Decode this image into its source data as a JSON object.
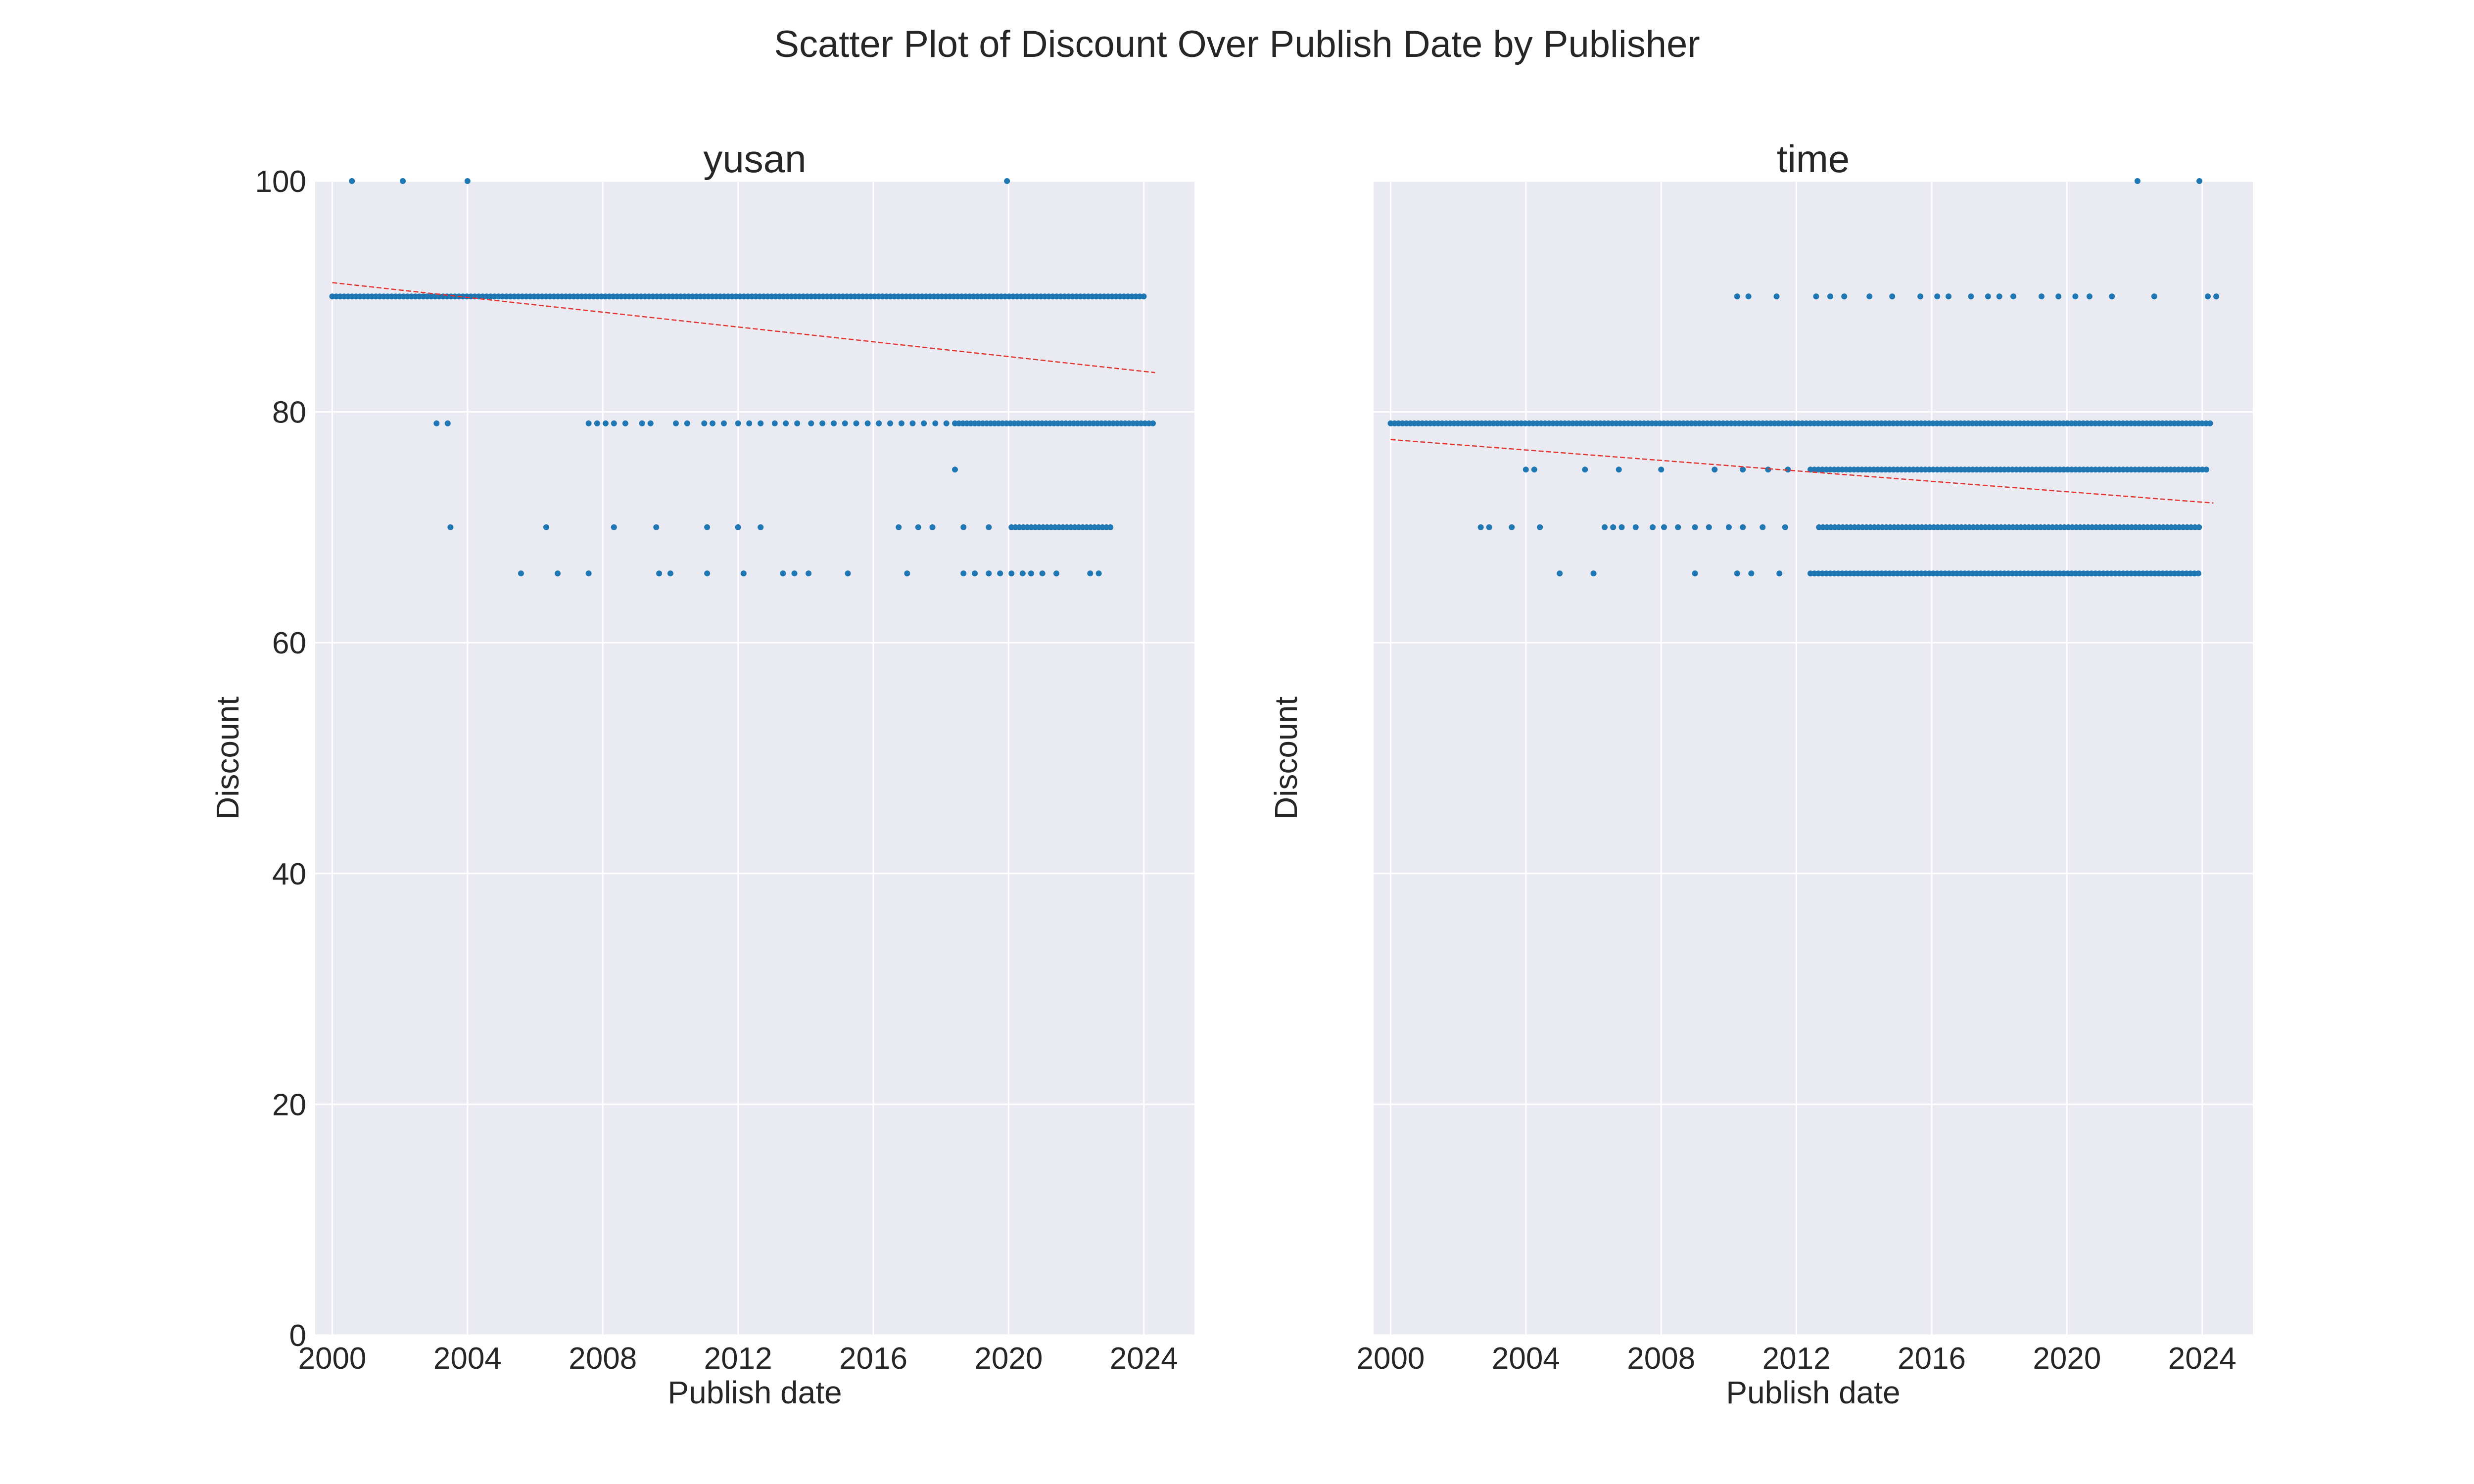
{
  "chart_data": {
    "type": "scatter",
    "title": "Scatter Plot of Discount Over Publish Date by Publisher",
    "shared_y": true,
    "colors": {
      "points": "#1f77b4",
      "trend": "#e3342f",
      "plot_bg": "#eaeaf2",
      "grid": "#ffffff"
    },
    "panels": [
      {
        "title": "yusan",
        "xlabel": "Publish date",
        "ylabel": "Discount",
        "xlim": [
          "1999-07-01",
          "2025-07-01"
        ],
        "ylim": [
          0,
          100
        ],
        "xticks": [
          "2000",
          "2004",
          "2008",
          "2012",
          "2016",
          "2020",
          "2024"
        ],
        "yticks": [
          "0",
          "20",
          "40",
          "60",
          "80",
          "100"
        ],
        "series": [
          {
            "y": 90,
            "dense_range": [
              "2000-01-01",
              "2024-02-01"
            ],
            "dates": []
          },
          {
            "y": 100,
            "dense_range": null,
            "dates": [
              "2000-08-01",
              "2002-02-01",
              "2004-01-01",
              "2019-12-15"
            ]
          },
          {
            "y": 79,
            "dense_range": [
              "2018-06-01",
              "2024-05-01"
            ],
            "dates": [
              "2003-02-01",
              "2003-06-01",
              "2007-08-01",
              "2007-11-01",
              "2008-02-01",
              "2008-05-01",
              "2008-09-01",
              "2009-03-01",
              "2009-06-01",
              "2010-03-01",
              "2010-07-01",
              "2011-01-01",
              "2011-04-01",
              "2011-08-01",
              "2012-01-01",
              "2012-05-01",
              "2012-09-01",
              "2013-02-01",
              "2013-06-01",
              "2013-10-01",
              "2014-03-01",
              "2014-07-01",
              "2014-11-01",
              "2015-03-01",
              "2015-07-01",
              "2015-11-01",
              "2016-03-01",
              "2016-07-01",
              "2016-11-01",
              "2017-03-01",
              "2017-07-01",
              "2017-11-01",
              "2018-03-01"
            ]
          },
          {
            "y": 75,
            "dense_range": null,
            "dates": [
              "2018-06-01"
            ]
          },
          {
            "y": 70,
            "dense_range": [
              "2020-02-01",
              "2023-02-01"
            ],
            "dates": [
              "2003-07-01",
              "2006-05-01",
              "2008-05-01",
              "2009-08-01",
              "2011-02-01",
              "2012-01-01",
              "2012-09-01",
              "2016-10-01",
              "2017-05-01",
              "2017-10-01",
              "2018-09-01",
              "2019-06-01"
            ]
          },
          {
            "y": 66,
            "dense_range": null,
            "dates": [
              "2005-08-01",
              "2006-09-01",
              "2007-08-01",
              "2009-09-01",
              "2010-01-01",
              "2011-02-01",
              "2012-03-01",
              "2013-05-01",
              "2013-09-01",
              "2014-02-01",
              "2015-04-01",
              "2017-01-01",
              "2018-09-01",
              "2019-01-01",
              "2019-06-01",
              "2019-10-01",
              "2020-02-01",
              "2020-06-01",
              "2020-09-01",
              "2021-01-01",
              "2021-06-01",
              "2022-06-01",
              "2022-09-01"
            ]
          }
        ],
        "trend": {
          "start": [
            "2000-01-01",
            91.2
          ],
          "end": [
            "2024-05-01",
            83.4
          ]
        }
      },
      {
        "title": "time",
        "xlabel": "Publish date",
        "ylabel": "Discount",
        "xlim": [
          "1999-07-01",
          "2025-07-01"
        ],
        "ylim": [
          0,
          100
        ],
        "xticks": [
          "2000",
          "2004",
          "2008",
          "2012",
          "2016",
          "2020",
          "2024"
        ],
        "yticks": [
          "0",
          "20",
          "40",
          "60",
          "80",
          "100"
        ],
        "series": [
          {
            "y": 79,
            "dense_range": [
              "2000-01-01",
              "2024-05-01"
            ],
            "dates": []
          },
          {
            "y": 100,
            "dense_range": null,
            "dates": [
              "2022-02-01",
              "2023-12-01"
            ]
          },
          {
            "y": 90,
            "dense_range": null,
            "dates": [
              "2010-04-01",
              "2010-08-01",
              "2011-06-01",
              "2012-08-01",
              "2013-01-01",
              "2013-06-01",
              "2014-03-01",
              "2014-11-01",
              "2015-09-01",
              "2016-03-01",
              "2016-07-01",
              "2017-03-01",
              "2017-09-01",
              "2018-01-01",
              "2018-06-01",
              "2019-04-01",
              "2019-10-01",
              "2020-04-01",
              "2020-09-01",
              "2021-05-01",
              "2022-08-01",
              "2024-03-01",
              "2024-06-01"
            ]
          },
          {
            "y": 75,
            "dense_range": [
              "2012-06-01",
              "2024-03-01"
            ],
            "dates": [
              "2004-01-01",
              "2004-04-01",
              "2005-10-01",
              "2006-10-01",
              "2008-01-01",
              "2009-08-01",
              "2010-06-01",
              "2011-03-01",
              "2011-10-01"
            ]
          },
          {
            "y": 70,
            "dense_range": [
              "2012-09-01",
              "2024-01-01"
            ],
            "dates": [
              "2002-09-01",
              "2002-12-01",
              "2003-08-01",
              "2004-06-01",
              "2006-05-01",
              "2006-08-01",
              "2006-11-01",
              "2007-04-01",
              "2007-10-01",
              "2008-02-01",
              "2008-07-01",
              "2009-01-01",
              "2009-06-01",
              "2010-01-01",
              "2010-06-01",
              "2011-01-01",
              "2011-09-01"
            ]
          },
          {
            "y": 66,
            "dense_range": [
              "2012-06-01",
              "2024-01-01"
            ],
            "dates": [
              "2005-01-01",
              "2006-01-01",
              "2009-01-01",
              "2010-04-01",
              "2010-09-01",
              "2011-07-01"
            ]
          }
        ],
        "trend": {
          "start": [
            "2000-01-01",
            77.6
          ],
          "end": [
            "2024-05-01",
            72.1
          ]
        }
      }
    ]
  }
}
